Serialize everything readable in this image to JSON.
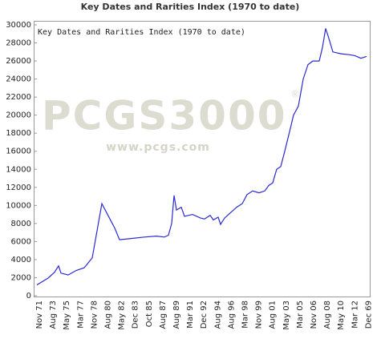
{
  "chart_data": {
    "type": "line",
    "title": "Key Dates and Rarities Index (1970 to date)",
    "inner_title": "Key Dates and Rarities Index (1970 to date)",
    "watermark": {
      "logo": "PCGS3000",
      "mark": "®",
      "url": "www.pcgs.com"
    },
    "categories": [
      "Nov 71",
      "Aug 73",
      "May 75",
      "Mar 77",
      "Nov 78",
      "Aug 80",
      "May 82",
      "Dec 83",
      "Oct 85",
      "Aug 87",
      "Aug 89",
      "Mar 91",
      "Dec 92",
      "Aug 94",
      "Aug 96",
      "Mar 98",
      "Nov 99",
      "Aug 01",
      "May 03",
      "Mar 05",
      "Nov 06",
      "Aug 08",
      "May 10",
      "Mar 12",
      "Dec 69"
    ],
    "x": [
      1971.83,
      1973.26,
      1974.08,
      1974.59,
      1974.9,
      1975.82,
      1976.85,
      1977.87,
      1978.89,
      1980.12,
      1981.14,
      1981.76,
      1982.37,
      1983.5,
      1985.55,
      1987.08,
      1988.1,
      1988.62,
      1989.03,
      1989.33,
      1989.64,
      1990.25,
      1990.66,
      1991.69,
      1992.71,
      1993.22,
      1993.94,
      1994.35,
      1994.96,
      1995.27,
      1995.78,
      1996.29,
      1997.32,
      1998.03,
      1998.65,
      1999.36,
      2000.18,
      2000.9,
      2001.41,
      2001.92,
      2002.43,
      2002.95,
      2003.46,
      2004.17,
      2004.58,
      2005.2,
      2005.81,
      2006.43,
      2007.04,
      2007.86,
      2008.27,
      2008.68,
      2009.09,
      2009.6,
      2010.62,
      2011.65,
      2012.36,
      2013.18,
      2013.9
    ],
    "series": [
      {
        "name": "Key Dates and Rarities Index",
        "color": "#2a2ad0",
        "values": [
          1200,
          1950,
          2600,
          3300,
          2500,
          2300,
          2800,
          3100,
          4200,
          10200,
          8500,
          7500,
          6200,
          6300,
          6500,
          6600,
          6500,
          6700,
          8000,
          11100,
          9500,
          9800,
          8800,
          9000,
          8600,
          8500,
          8900,
          8400,
          8700,
          7900,
          8600,
          9000,
          9800,
          10200,
          11200,
          11600,
          11400,
          11600,
          12200,
          12500,
          14000,
          14300,
          16000,
          18500,
          20000,
          21000,
          24000,
          25600,
          26000,
          26000,
          27500,
          29600,
          28500,
          27000,
          26800,
          26700,
          26600,
          26300,
          26500
        ]
      }
    ],
    "xlim": [
      1971.83,
      2013.9
    ],
    "ylim": [
      0,
      30000
    ],
    "yticks": [
      0,
      2000,
      4000,
      6000,
      8000,
      10000,
      12000,
      14000,
      16000,
      18000,
      20000,
      22000,
      24000,
      26000,
      28000,
      30000
    ],
    "grid": false
  }
}
